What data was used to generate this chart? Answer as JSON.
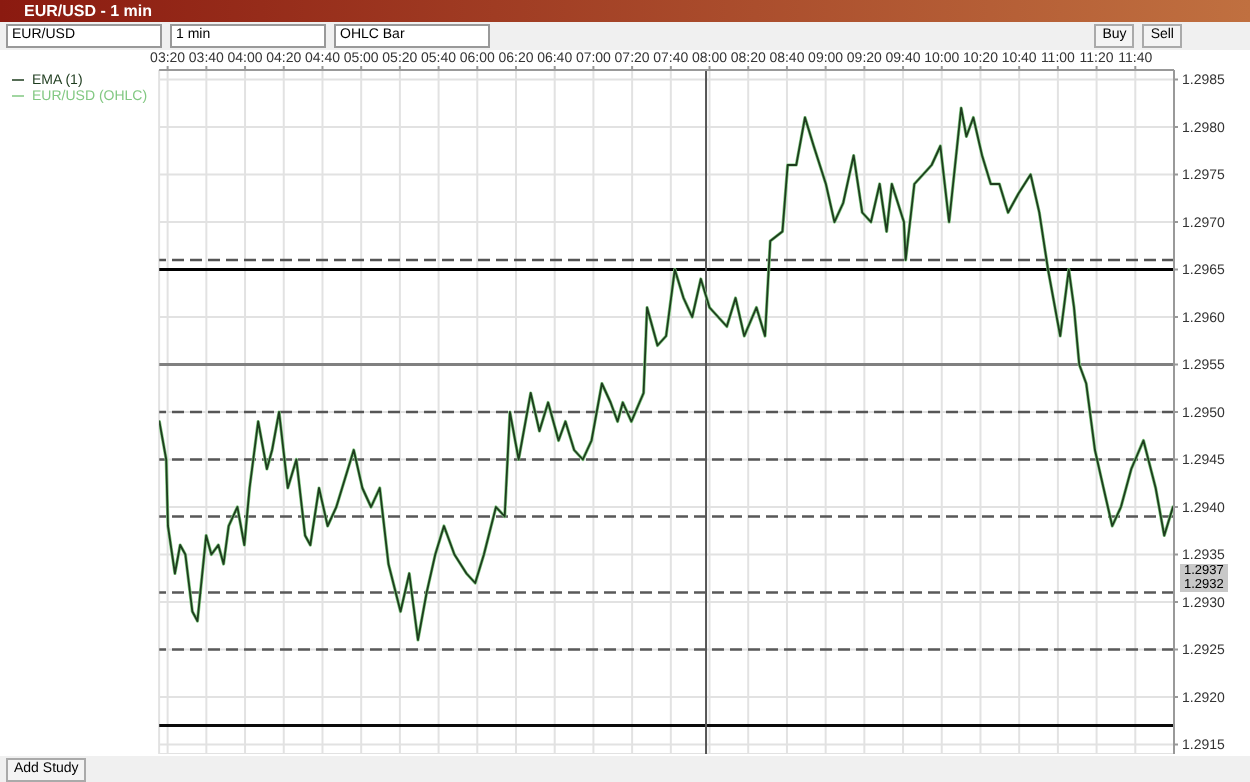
{
  "chart_data": {
    "type": "line",
    "title": "EUR/USD - 1 min",
    "annotations": [
      "EUR/USD",
      "1 min",
      "OHLC Bar",
      "Buy",
      "Sell",
      "Add Study",
      "1.2937",
      "1.2932"
    ],
    "x": [
      3.262,
      3.321,
      3.336,
      3.396,
      3.441,
      3.486,
      3.546,
      3.59,
      3.665,
      3.71,
      3.77,
      3.815,
      3.859,
      3.934,
      3.994,
      4.039,
      4.113,
      4.188,
      4.233,
      4.293,
      4.368,
      4.442,
      4.517,
      4.562,
      4.637,
      4.711,
      4.786,
      4.861,
      4.936,
      5.01,
      5.085,
      5.16,
      5.235,
      5.339,
      5.414,
      5.489,
      5.564,
      5.638,
      5.713,
      5.803,
      5.907,
      5.982,
      6.057,
      6.161,
      6.236,
      6.281,
      6.356,
      6.46,
      6.535,
      6.61,
      6.7,
      6.759,
      6.834,
      6.909,
      6.984,
      7.073,
      7.148,
      7.208,
      7.253,
      7.327,
      7.432,
      7.462,
      7.552,
      7.626,
      7.701,
      7.776,
      7.851,
      7.925,
      8.0,
      8.149,
      8.224,
      8.299,
      8.404,
      8.478,
      8.523,
      8.628,
      8.673,
      8.747,
      8.822,
      8.897,
      9.002,
      9.076,
      9.151,
      9.241,
      9.315,
      9.39,
      9.465,
      9.525,
      9.57,
      9.674,
      9.689,
      9.764,
      9.839,
      9.913,
      9.988,
      10.063,
      10.167,
      10.212,
      10.272,
      10.347,
      10.422,
      10.496,
      10.571,
      10.661,
      10.765,
      10.84,
      10.915,
      11.02,
      11.094,
      11.139,
      11.184,
      11.244,
      11.319,
      11.393,
      11.468,
      11.543,
      11.632,
      11.737,
      11.842,
      11.916,
      11.991
    ],
    "series": [
      {
        "name": "EUR/USD (OHLC)",
        "color": "#82c882",
        "values": [
          1.2949,
          1.2945,
          1.2938,
          1.2933,
          1.2936,
          1.2935,
          1.2929,
          1.2928,
          1.2937,
          1.2935,
          1.2936,
          1.2934,
          1.2938,
          1.294,
          1.2936,
          1.2942,
          1.2949,
          1.2944,
          1.2946,
          1.295,
          1.2942,
          1.2945,
          1.2937,
          1.2936,
          1.2942,
          1.2938,
          1.294,
          1.2943,
          1.2946,
          1.2942,
          1.294,
          1.2942,
          1.2934,
          1.2929,
          1.2933,
          1.2926,
          1.2931,
          1.2935,
          1.2938,
          1.2935,
          1.2933,
          1.2932,
          1.2935,
          1.294,
          1.2939,
          1.295,
          1.2945,
          1.2952,
          1.2948,
          1.2951,
          1.2947,
          1.2949,
          1.2946,
          1.2945,
          1.2947,
          1.2953,
          1.2951,
          1.2949,
          1.2951,
          1.2949,
          1.2952,
          1.2961,
          1.2957,
          1.2958,
          1.2965,
          1.2962,
          1.296,
          1.2964,
          1.2961,
          1.2959,
          1.2962,
          1.2958,
          1.2961,
          1.2958,
          1.2968,
          1.2969,
          1.2976,
          1.2976,
          1.2981,
          1.2978,
          1.2974,
          1.297,
          1.2972,
          1.2977,
          1.2971,
          1.297,
          1.2974,
          1.2969,
          1.2974,
          1.297,
          1.2966,
          1.2974,
          1.2975,
          1.2976,
          1.2978,
          1.297,
          1.2982,
          1.2979,
          1.2981,
          1.2977,
          1.2974,
          1.2974,
          1.2971,
          1.2973,
          1.2975,
          1.2971,
          1.2965,
          1.2958,
          1.2965,
          1.2961,
          1.2955,
          1.2953,
          1.2946,
          1.2942,
          1.2938,
          1.294,
          1.2944,
          1.2947,
          1.2942,
          1.2937,
          1.294
        ]
      },
      {
        "name": "EMA (1)",
        "color": "#1e3c1e",
        "values": [
          1.2949,
          1.2945,
          1.2938,
          1.2933,
          1.2936,
          1.2935,
          1.2929,
          1.2928,
          1.2937,
          1.2935,
          1.2936,
          1.2934,
          1.2938,
          1.294,
          1.2936,
          1.2942,
          1.2949,
          1.2944,
          1.2946,
          1.295,
          1.2942,
          1.2945,
          1.2937,
          1.2936,
          1.2942,
          1.2938,
          1.294,
          1.2943,
          1.2946,
          1.2942,
          1.294,
          1.2942,
          1.2934,
          1.2929,
          1.2933,
          1.2926,
          1.2931,
          1.2935,
          1.2938,
          1.2935,
          1.2933,
          1.2932,
          1.2935,
          1.294,
          1.2939,
          1.295,
          1.2945,
          1.2952,
          1.2948,
          1.2951,
          1.2947,
          1.2949,
          1.2946,
          1.2945,
          1.2947,
          1.2953,
          1.2951,
          1.2949,
          1.2951,
          1.2949,
          1.2952,
          1.2961,
          1.2957,
          1.2958,
          1.2965,
          1.2962,
          1.296,
          1.2964,
          1.2961,
          1.2959,
          1.2962,
          1.2958,
          1.2961,
          1.2958,
          1.2968,
          1.2969,
          1.2976,
          1.2976,
          1.2981,
          1.2978,
          1.2974,
          1.297,
          1.2972,
          1.2977,
          1.2971,
          1.297,
          1.2974,
          1.2969,
          1.2974,
          1.297,
          1.2966,
          1.2974,
          1.2975,
          1.2976,
          1.2978,
          1.297,
          1.2982,
          1.2979,
          1.2981,
          1.2977,
          1.2974,
          1.2974,
          1.2971,
          1.2973,
          1.2975,
          1.2971,
          1.2965,
          1.2958,
          1.2965,
          1.2961,
          1.2955,
          1.2953,
          1.2946,
          1.2942,
          1.2938,
          1.294,
          1.2944,
          1.2947,
          1.2942,
          1.2937,
          1.294
        ]
      }
    ],
    "xlim": [
      3.26,
      12.0
    ],
    "xticks": [
      {
        "value": 3.3333,
        "label": "03:20"
      },
      {
        "value": 3.6667,
        "label": "03:40"
      },
      {
        "value": 4,
        "label": "04:00"
      },
      {
        "value": 4.3333,
        "label": "04:20"
      },
      {
        "value": 4.6667,
        "label": "04:40"
      },
      {
        "value": 5,
        "label": "05:00"
      },
      {
        "value": 5.3333,
        "label": "05:20"
      },
      {
        "value": 5.6667,
        "label": "05:40"
      },
      {
        "value": 6,
        "label": "06:00"
      },
      {
        "value": 6.3333,
        "label": "06:20"
      },
      {
        "value": 6.6667,
        "label": "06:40"
      },
      {
        "value": 7,
        "label": "07:00"
      },
      {
        "value": 7.3333,
        "label": "07:20"
      },
      {
        "value": 7.6667,
        "label": "07:40"
      },
      {
        "value": 8,
        "label": "08:00"
      },
      {
        "value": 8.3333,
        "label": "08:20"
      },
      {
        "value": 8.6667,
        "label": "08:40"
      },
      {
        "value": 9,
        "label": "09:00"
      },
      {
        "value": 9.3333,
        "label": "09:20"
      },
      {
        "value": 9.6667,
        "label": "09:40"
      },
      {
        "value": 10,
        "label": "10:00"
      },
      {
        "value": 10.3333,
        "label": "10:20"
      },
      {
        "value": 10.6667,
        "label": "10:40"
      },
      {
        "value": 11,
        "label": "11:00"
      },
      {
        "value": 11.3333,
        "label": "11:20"
      },
      {
        "value": 11.6667,
        "label": "11:40"
      }
    ],
    "ylim": [
      1.2914,
      1.2986
    ],
    "yticks": [
      1.2915,
      {
        "value": 1.292,
        "label": "1.2920"
      },
      1.2925,
      {
        "value": 1.293,
        "label": "1.2930"
      },
      1.2935,
      {
        "value": 1.294,
        "label": "1.2940"
      },
      1.2945,
      {
        "value": 1.295,
        "label": "1.2950"
      },
      1.2955,
      {
        "value": 1.296,
        "label": "1.2960"
      },
      1.2965,
      {
        "value": 1.297,
        "label": "1.2970"
      },
      1.2975,
      {
        "value": 1.298,
        "label": "1.2980"
      },
      1.2985
    ],
    "ref_lines": [
      {
        "axis": "y",
        "value": 1.2966,
        "color": "#555555",
        "line_style": "dashed"
      },
      {
        "axis": "y",
        "value": 1.2965,
        "color": "#000000",
        "line_style": "solid"
      },
      {
        "axis": "y",
        "value": 1.2955,
        "color": "#808080",
        "line_style": "solid"
      },
      {
        "axis": "y",
        "value": 1.295,
        "color": "#565656",
        "line_style": "dashed"
      },
      {
        "axis": "y",
        "value": 1.2945,
        "color": "#575757",
        "line_style": "dashed"
      },
      {
        "axis": "y",
        "value": 1.2939,
        "color": "#585858",
        "line_style": "dashed"
      },
      {
        "axis": "y",
        "value": 1.2931,
        "color": "#595959",
        "line_style": "dashed"
      },
      {
        "axis": "y",
        "value": 1.2925,
        "color": "#5a5a5a",
        "line_style": "dashed"
      },
      {
        "axis": "y",
        "value": 1.2917,
        "color": "#0a0a0a",
        "line_style": "solid"
      },
      {
        "axis": "x",
        "value": 7.97,
        "color": "#555555",
        "line_style": "solid"
      }
    ],
    "grid": true,
    "legend": "top left",
    "marker": "none",
    "line_style": "solid"
  }
}
